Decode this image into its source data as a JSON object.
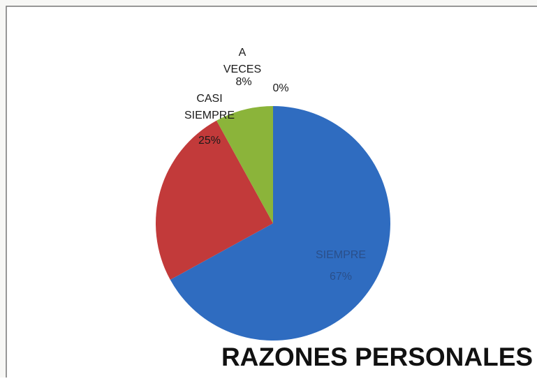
{
  "chart_data": {
    "type": "pie",
    "title": "RAZONES PERSONALES",
    "categories": [
      "SIEMPRE",
      "CASI SIEMPRE",
      "A VECES",
      null
    ],
    "values": [
      67,
      25,
      8,
      0
    ],
    "value_labels": [
      "67%",
      "25%",
      "8%",
      "0%"
    ],
    "colors": [
      "#2f6cc0",
      "#c23a3a",
      "#8bb43a",
      "#7d5fa6"
    ]
  }
}
